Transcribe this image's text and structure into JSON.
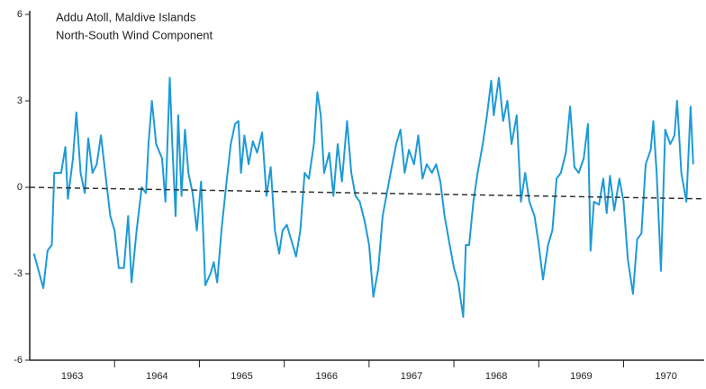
{
  "chart_data": {
    "type": "line",
    "title": "Addu Atoll, Maldive Islands",
    "subtitle": "North-South Wind Component",
    "xlim": [
      1963,
      1970.95
    ],
    "xticks": [
      1964,
      1965,
      1966,
      1967,
      1968,
      1969,
      1970
    ],
    "x_labels": [
      "1963",
      "1964",
      "1965",
      "1966",
      "1967",
      "1968",
      "1969",
      "1970"
    ],
    "ylim": [
      -6,
      6
    ],
    "yticks": [
      -6,
      -3,
      0,
      3,
      6
    ],
    "series": [
      {
        "color": "#1e9ad6",
        "x": [
          1963.05,
          1963.16,
          1963.21,
          1963.26,
          1963.29,
          1963.37,
          1963.42,
          1963.45,
          1963.51,
          1963.55,
          1963.6,
          1963.65,
          1963.69,
          1963.74,
          1963.79,
          1963.84,
          1963.89,
          1963.95,
          1964.0,
          1964.05,
          1964.11,
          1964.16,
          1964.2,
          1964.26,
          1964.32,
          1964.37,
          1964.4,
          1964.44,
          1964.49,
          1964.56,
          1964.6,
          1964.65,
          1964.68,
          1964.72,
          1964.75,
          1964.79,
          1964.83,
          1964.87,
          1964.92,
          1964.97,
          1965.02,
          1965.07,
          1965.13,
          1965.17,
          1965.21,
          1965.26,
          1965.32,
          1965.37,
          1965.42,
          1965.46,
          1965.49,
          1965.53,
          1965.58,
          1965.63,
          1965.68,
          1965.74,
          1965.79,
          1965.84,
          1965.89,
          1965.94,
          1965.98,
          1966.03,
          1966.08,
          1966.14,
          1966.19,
          1966.24,
          1966.29,
          1966.35,
          1966.39,
          1966.43,
          1966.47,
          1966.53,
          1966.58,
          1966.63,
          1966.68,
          1966.74,
          1966.79,
          1966.84,
          1966.89,
          1966.95,
          1967.0,
          1967.05,
          1967.11,
          1967.16,
          1967.21,
          1967.26,
          1967.32,
          1967.37,
          1967.42,
          1967.47,
          1967.53,
          1967.58,
          1967.63,
          1967.68,
          1967.74,
          1967.79,
          1967.84,
          1967.89,
          1967.95,
          1968.0,
          1968.05,
          1968.11,
          1968.14,
          1968.18,
          1968.23,
          1968.28,
          1968.34,
          1968.39,
          1968.44,
          1968.47,
          1968.53,
          1968.58,
          1968.63,
          1968.68,
          1968.74,
          1968.79,
          1968.84,
          1968.89,
          1968.95,
          1969.0,
          1969.05,
          1969.11,
          1969.16,
          1969.21,
          1969.26,
          1969.32,
          1969.37,
          1969.42,
          1969.47,
          1969.53,
          1969.58,
          1969.61,
          1969.65,
          1969.71,
          1969.76,
          1969.8,
          1969.84,
          1969.89,
          1969.95,
          1970.0,
          1970.05,
          1970.11,
          1970.16,
          1970.21,
          1970.26,
          1970.32,
          1970.35,
          1970.39,
          1970.44,
          1970.49,
          1970.55,
          1970.6,
          1970.63,
          1970.68,
          1970.74,
          1970.79,
          1970.82
        ],
        "values": [
          -2.3,
          -3.5,
          -2.2,
          -2.0,
          0.5,
          0.5,
          1.4,
          -0.4,
          1.0,
          2.6,
          0.5,
          -0.2,
          1.7,
          0.5,
          0.8,
          1.8,
          0.5,
          -1.0,
          -1.5,
          -2.8,
          -2.8,
          -1.0,
          -3.3,
          -1.5,
          0.0,
          -0.2,
          1.5,
          3.0,
          1.5,
          1.0,
          -0.5,
          3.8,
          1.5,
          -1.0,
          2.5,
          -0.3,
          2.0,
          0.5,
          -0.2,
          -1.5,
          0.2,
          -3.4,
          -3.0,
          -2.6,
          -3.3,
          -1.5,
          0.2,
          1.5,
          2.2,
          2.3,
          0.5,
          1.8,
          0.8,
          1.6,
          1.2,
          1.9,
          -0.3,
          0.7,
          -1.5,
          -2.3,
          -1.5,
          -1.3,
          -1.8,
          -2.4,
          -1.5,
          0.5,
          0.3,
          1.5,
          3.3,
          2.5,
          0.5,
          1.2,
          -0.3,
          1.5,
          0.2,
          2.3,
          0.5,
          -0.3,
          -0.5,
          -1.2,
          -2.0,
          -3.8,
          -2.8,
          -1.0,
          -0.2,
          0.6,
          1.5,
          2.0,
          0.5,
          1.3,
          0.8,
          1.8,
          0.3,
          0.8,
          0.5,
          0.8,
          0.2,
          -1.0,
          -2.0,
          -2.8,
          -3.3,
          -4.5,
          -2.0,
          -2.0,
          -0.5,
          0.5,
          1.5,
          2.5,
          3.7,
          2.5,
          3.8,
          2.3,
          3.0,
          1.5,
          2.5,
          -0.5,
          0.5,
          -0.5,
          -1.0,
          -2.0,
          -3.2,
          -2.0,
          -1.5,
          0.3,
          0.5,
          1.2,
          2.8,
          0.7,
          0.5,
          1.0,
          2.2,
          -2.2,
          -0.5,
          -0.6,
          0.3,
          -0.9,
          0.4,
          -0.8,
          0.3,
          -0.5,
          -2.5,
          -3.7,
          -1.8,
          -1.6,
          0.8,
          1.3,
          2.3,
          0.5,
          -2.9,
          2.0,
          1.5,
          1.8,
          3.0,
          0.5,
          -0.5,
          2.8,
          0.8
        ]
      }
    ],
    "trend_line": {
      "x": [
        1963,
        1970.95
      ],
      "values": [
        0,
        -0.4
      ],
      "color": "#333",
      "dashed": true
    }
  }
}
